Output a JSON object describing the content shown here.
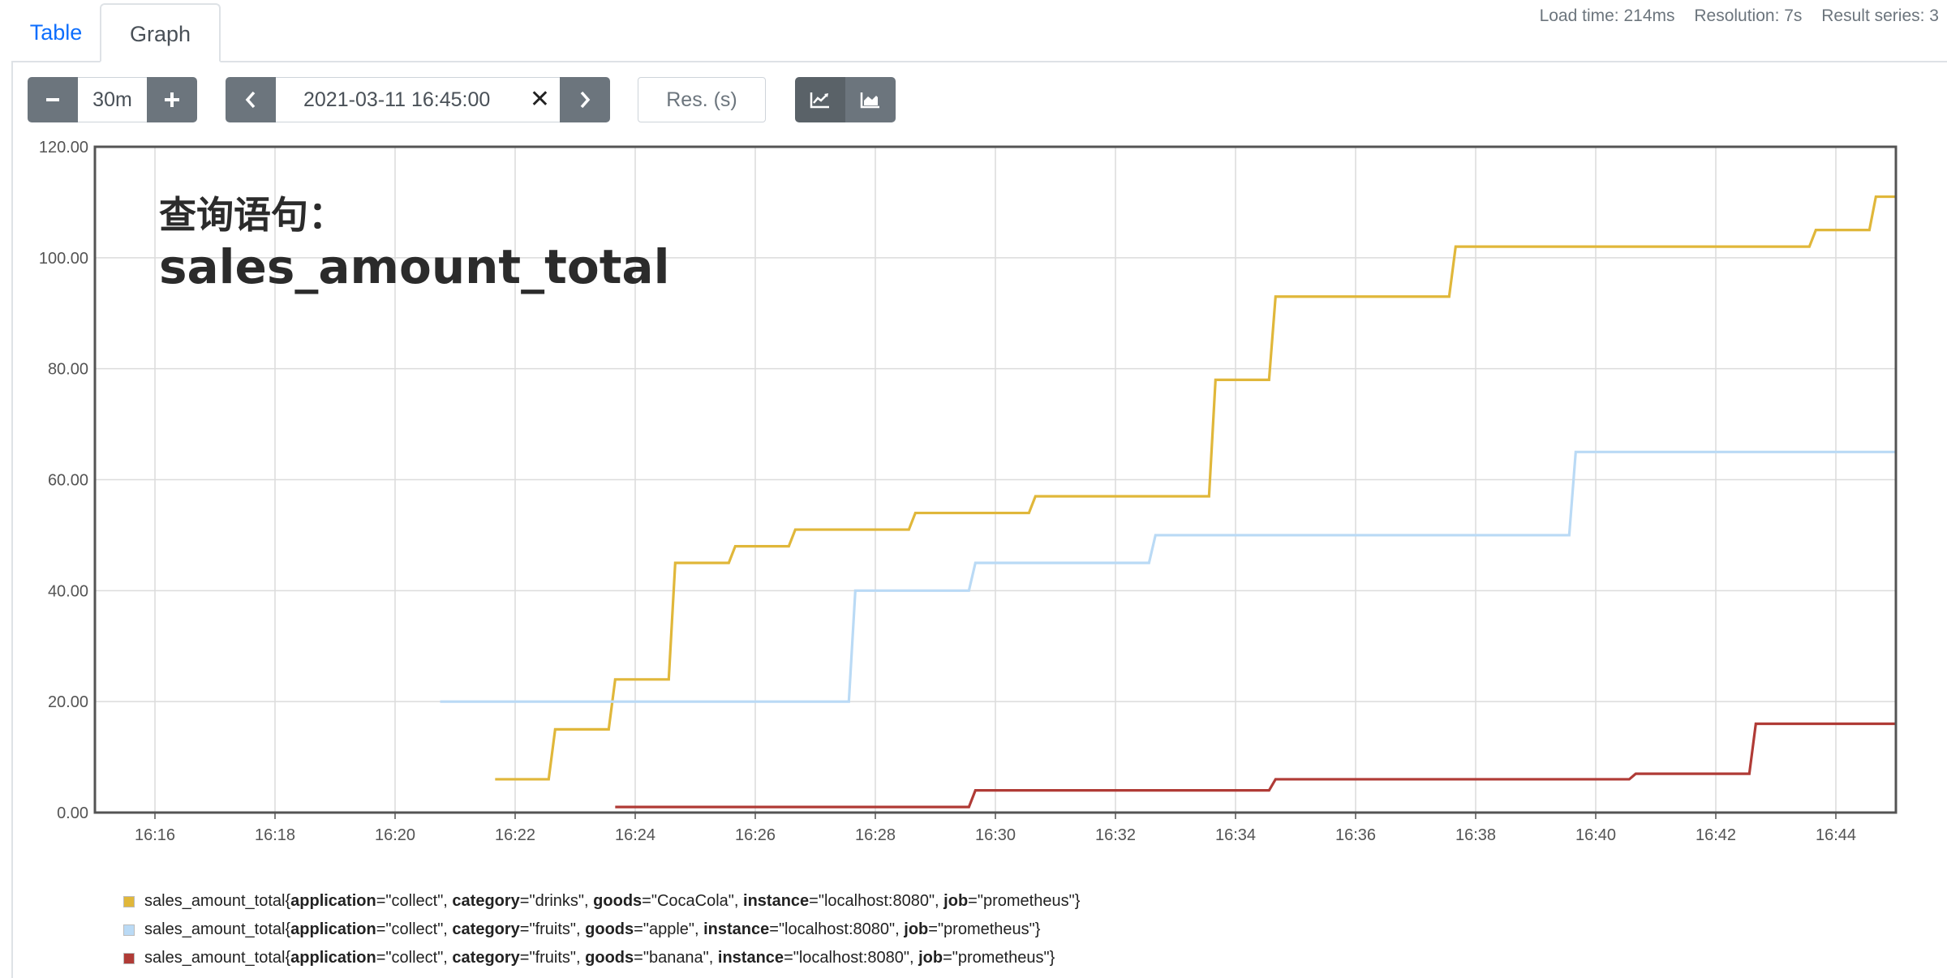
{
  "tabs": [
    {
      "label": "Table",
      "active": false
    },
    {
      "label": "Graph",
      "active": true
    }
  ],
  "stats": {
    "load_time": "Load time: 214ms",
    "resolution": "Resolution: 7s",
    "result_series": "Result series: 3"
  },
  "controls": {
    "range_value": "30m",
    "end_time_value": "2021-03-11 16:45:00",
    "resolution_placeholder": "Res. (s)",
    "icons": {
      "minus": "minus-icon",
      "plus": "plus-icon",
      "prev": "chevron-left-icon",
      "next": "chevron-right-icon",
      "clear": "close-icon",
      "lines": "line-chart-icon",
      "stacked": "area-chart-icon"
    }
  },
  "overlay": {
    "line1": "查询语句：",
    "line2": "sales_amount_total"
  },
  "chart_data": {
    "type": "line",
    "step": true,
    "x_unit": "time (2021-03-11)",
    "xlim": [
      "16:15",
      "16:45"
    ],
    "xticks": [
      "16:16",
      "16:18",
      "16:20",
      "16:22",
      "16:24",
      "16:26",
      "16:28",
      "16:30",
      "16:32",
      "16:34",
      "16:36",
      "16:38",
      "16:40",
      "16:42",
      "16:44"
    ],
    "ylim": [
      0,
      120
    ],
    "yticks": [
      "0.00",
      "20.00",
      "40.00",
      "60.00",
      "80.00",
      "100.00",
      "120.00"
    ],
    "grid": true,
    "legend_position": "bottom-left",
    "series": [
      {
        "color": "#e0b73a",
        "points": [
          [
            "16:21:40",
            6
          ],
          [
            "16:22:40",
            15
          ],
          [
            "16:23:40",
            24
          ],
          [
            "16:24:40",
            45
          ],
          [
            "16:25:40",
            48
          ],
          [
            "16:26:40",
            51
          ],
          [
            "16:28:40",
            54
          ],
          [
            "16:30:40",
            57
          ],
          [
            "16:33:40",
            78
          ],
          [
            "16:34:40",
            93
          ],
          [
            "16:37:40",
            102
          ],
          [
            "16:43:40",
            105
          ],
          [
            "16:44:40",
            111
          ],
          [
            "16:45:00",
            111
          ]
        ]
      },
      {
        "color": "#badaf5",
        "points": [
          [
            "16:20:45",
            20
          ],
          [
            "16:27:40",
            40
          ],
          [
            "16:29:40",
            45
          ],
          [
            "16:32:40",
            50
          ],
          [
            "16:39:40",
            65
          ],
          [
            "16:45:00",
            65
          ]
        ]
      },
      {
        "color": "#b03b36",
        "points": [
          [
            "16:23:40",
            1
          ],
          [
            "16:29:40",
            4
          ],
          [
            "16:34:40",
            6
          ],
          [
            "16:40:40",
            7
          ],
          [
            "16:42:40",
            16
          ],
          [
            "16:45:00",
            16
          ]
        ]
      }
    ]
  },
  "legend": [
    {
      "color": "#e0b73a",
      "metric": "sales_amount_total",
      "labels": [
        {
          "key": "application",
          "value": "\"collect\""
        },
        {
          "key": "category",
          "value": "\"drinks\""
        },
        {
          "key": "goods",
          "value": "\"CocaCola\""
        },
        {
          "key": "instance",
          "value": "\"localhost:8080\""
        },
        {
          "key": "job",
          "value": "\"prometheus\""
        }
      ]
    },
    {
      "color": "#badaf5",
      "metric": "sales_amount_total",
      "labels": [
        {
          "key": "application",
          "value": "\"collect\""
        },
        {
          "key": "category",
          "value": "\"fruits\""
        },
        {
          "key": "goods",
          "value": "\"apple\""
        },
        {
          "key": "instance",
          "value": "\"localhost:8080\""
        },
        {
          "key": "job",
          "value": "\"prometheus\""
        }
      ]
    },
    {
      "color": "#b03b36",
      "metric": "sales_amount_total",
      "labels": [
        {
          "key": "application",
          "value": "\"collect\""
        },
        {
          "key": "category",
          "value": "\"fruits\""
        },
        {
          "key": "goods",
          "value": "\"banana\""
        },
        {
          "key": "instance",
          "value": "\"localhost:8080\""
        },
        {
          "key": "job",
          "value": "\"prometheus\""
        }
      ]
    }
  ]
}
